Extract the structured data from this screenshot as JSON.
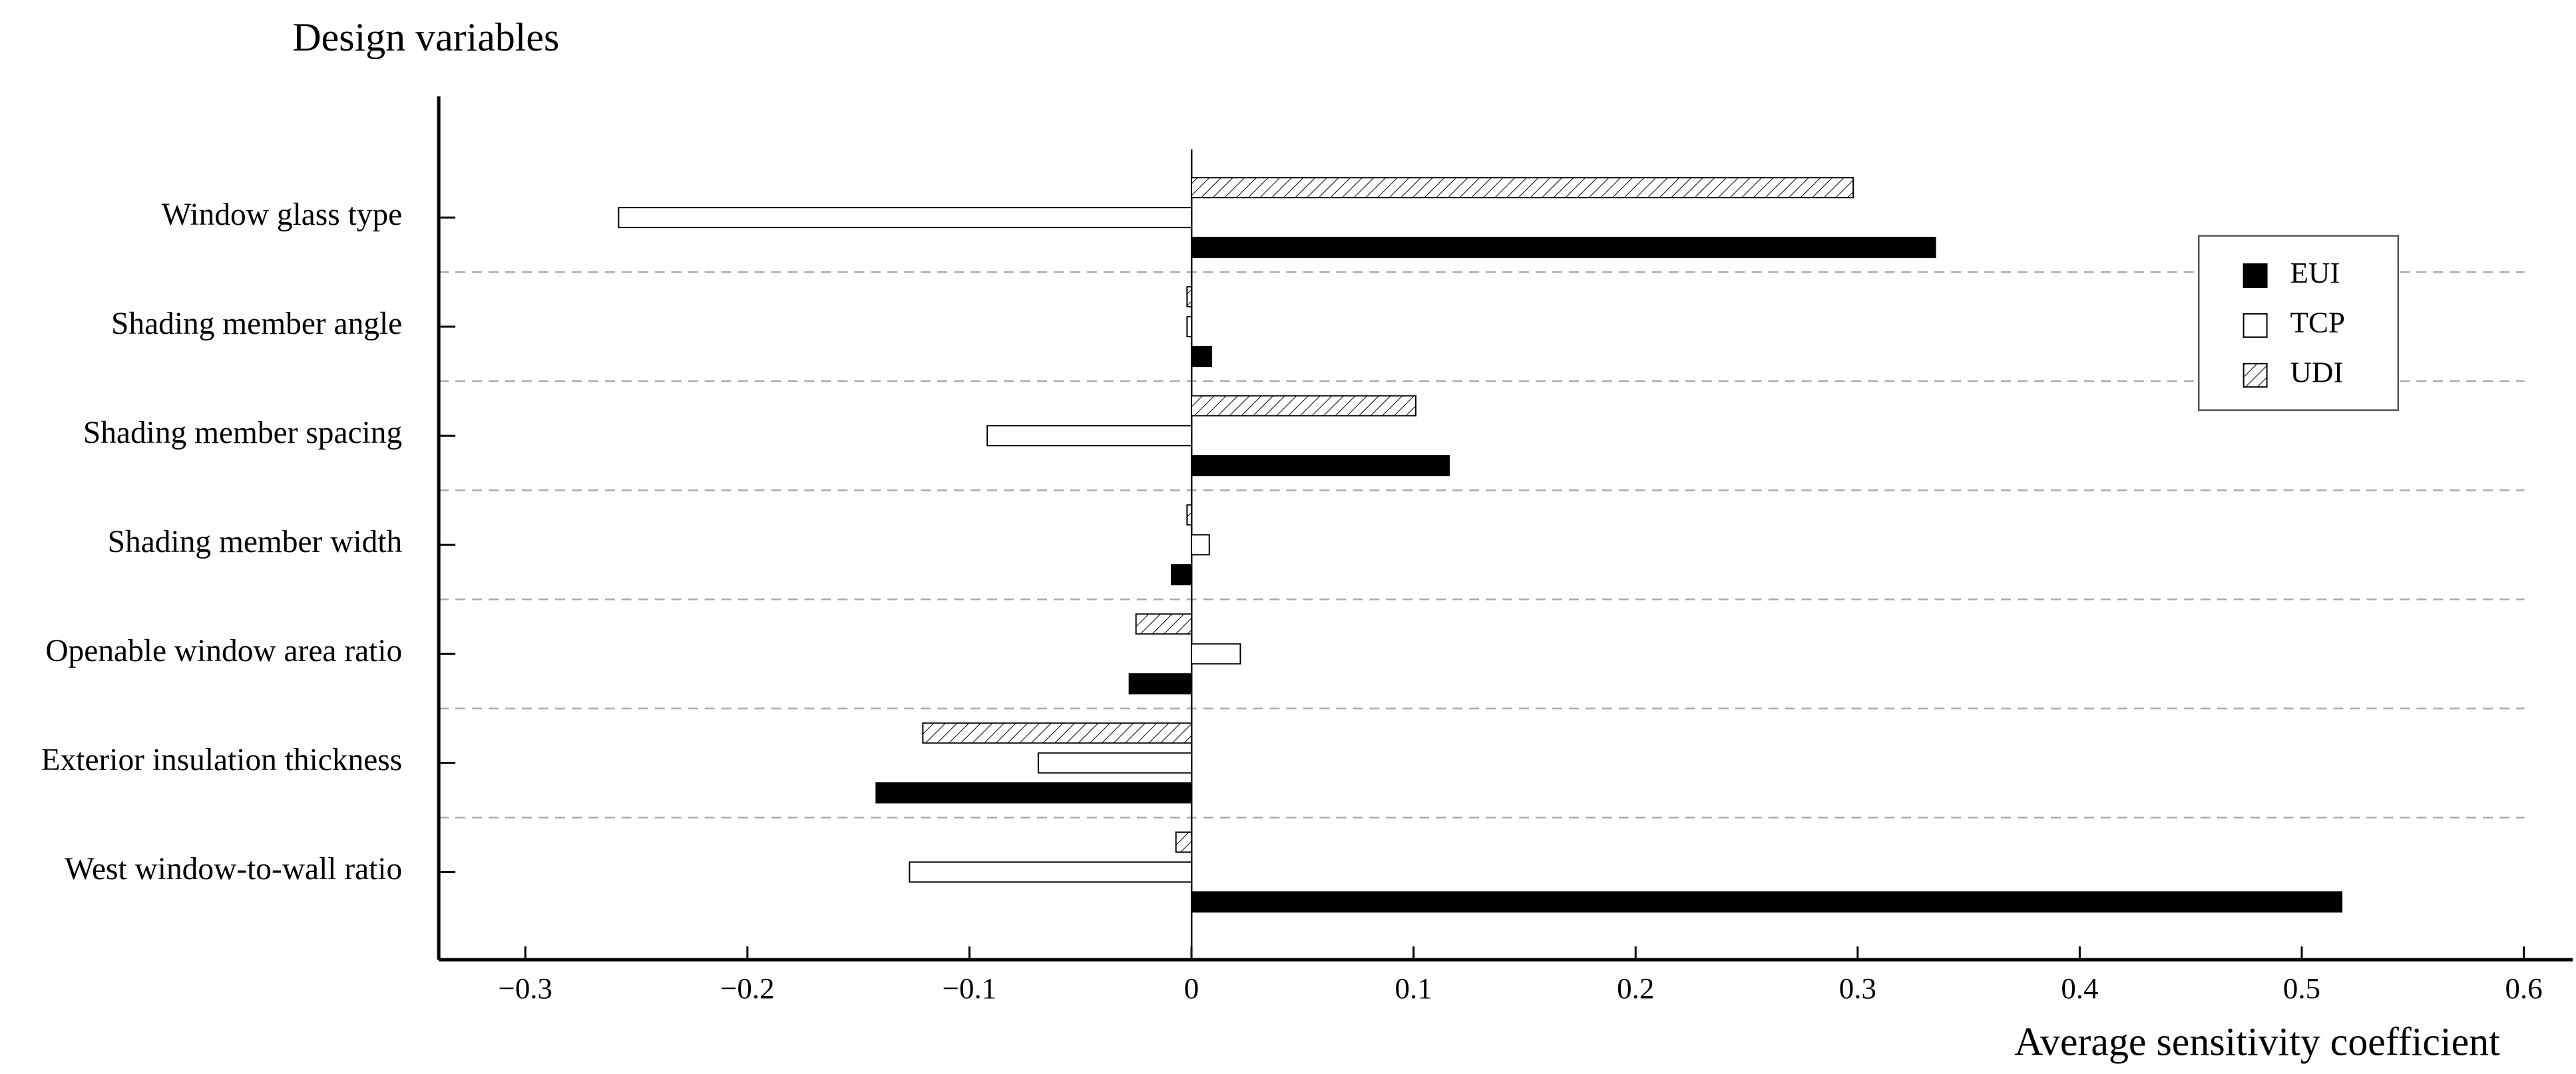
{
  "chart_data": {
    "type": "barh",
    "title": "Design variables",
    "x_label": "Average sensitivity coefficient",
    "categories": [
      "Window glass type",
      "Shading member angle",
      "Shading member spacing",
      "Shading member width",
      "Openable window area ratio",
      "Exterior insulation thickness",
      "West window-to-wall ratio"
    ],
    "series": [
      {
        "name": "EUI",
        "color": "#000000",
        "hatch": false,
        "values": [
          0.335,
          0.009,
          0.116,
          -0.009,
          -0.028,
          -0.142,
          0.518
        ]
      },
      {
        "name": "TCP",
        "color": "#ffffff",
        "hatch": false,
        "values": [
          -0.258,
          -0.002,
          -0.092,
          0.008,
          0.022,
          -0.069,
          -0.127
        ]
      },
      {
        "name": "UDI",
        "color": "#ffffff",
        "hatch": true,
        "values": [
          0.298,
          -0.002,
          0.101,
          -0.002,
          -0.025,
          -0.121,
          -0.007
        ]
      }
    ],
    "xlim": [
      -0.339,
      0.622
    ],
    "xticks": [
      {
        "value": -0.3,
        "label": "−0.3"
      },
      {
        "value": -0.2,
        "label": "−0.2"
      },
      {
        "value": -0.1,
        "label": "−0.1"
      },
      0,
      0.1,
      0.2,
      0.3,
      0.4,
      0.5,
      0.6
    ],
    "legend": "upper right"
  }
}
